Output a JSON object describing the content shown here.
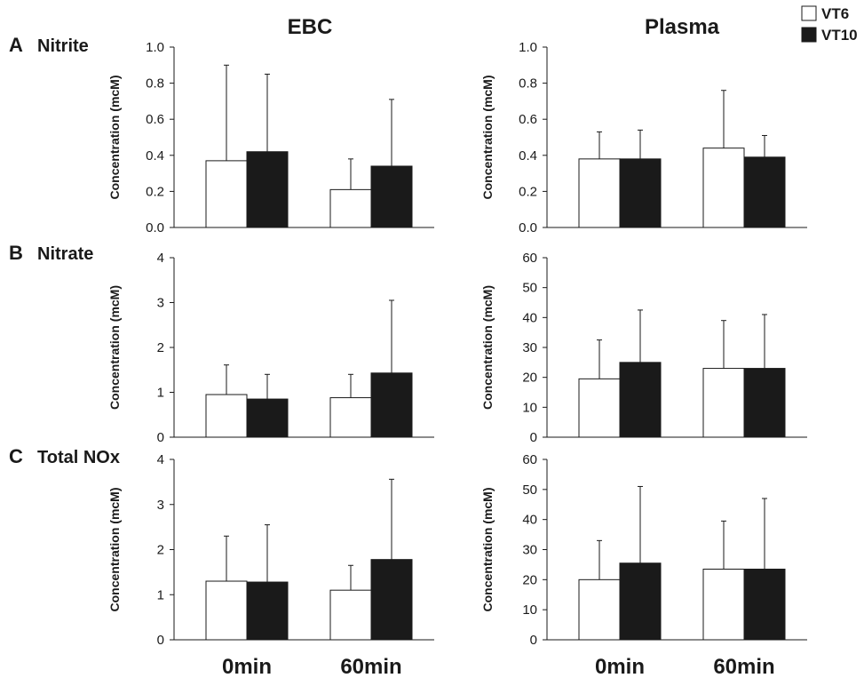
{
  "column_titles": [
    "EBC",
    "Plasma"
  ],
  "rows": [
    {
      "letter": "A",
      "title": "Nitrite"
    },
    {
      "letter": "B",
      "title": "Nitrate"
    },
    {
      "letter": "C",
      "title": "Total NOx"
    }
  ],
  "legend": [
    {
      "name": "VT6",
      "color": "#ffffff"
    },
    {
      "name": "VT10",
      "color": "#1a1a1a"
    }
  ],
  "categories": [
    "0min",
    "60min"
  ],
  "chart_data": [
    {
      "type": "bar",
      "panel": "A-EBC",
      "ylabel": "Concentration (mcM)",
      "ylim": [
        0,
        1.0
      ],
      "yticks": [
        "0.0",
        "0.2",
        "0.4",
        "0.6",
        "0.8",
        "1.0"
      ],
      "categories": [
        "0min",
        "60min"
      ],
      "series": [
        {
          "name": "VT6",
          "values": [
            0.37,
            0.21
          ],
          "error": [
            0.53,
            0.17
          ]
        },
        {
          "name": "VT10",
          "values": [
            0.42,
            0.34
          ],
          "error": [
            0.43,
            0.37
          ]
        }
      ]
    },
    {
      "type": "bar",
      "panel": "A-Plasma",
      "ylabel": "Concentration (mcM)",
      "ylim": [
        0,
        1.0
      ],
      "yticks": [
        "0.0",
        "0.2",
        "0.4",
        "0.6",
        "0.8",
        "1.0"
      ],
      "categories": [
        "0min",
        "60min"
      ],
      "series": [
        {
          "name": "VT6",
          "values": [
            0.38,
            0.44
          ],
          "error": [
            0.15,
            0.32
          ]
        },
        {
          "name": "VT10",
          "values": [
            0.38,
            0.39
          ],
          "error": [
            0.16,
            0.12
          ]
        }
      ]
    },
    {
      "type": "bar",
      "panel": "B-EBC",
      "ylabel": "Concentration (mcM)",
      "ylim": [
        0,
        4
      ],
      "yticks": [
        "0",
        "1",
        "2",
        "3",
        "4"
      ],
      "categories": [
        "0min",
        "60min"
      ],
      "series": [
        {
          "name": "VT6",
          "values": [
            0.95,
            0.88
          ],
          "error": [
            0.66,
            0.52
          ]
        },
        {
          "name": "VT10",
          "values": [
            0.85,
            1.43
          ],
          "error": [
            0.55,
            1.62
          ]
        }
      ]
    },
    {
      "type": "bar",
      "panel": "B-Plasma",
      "ylabel": "Concentration (mcM)",
      "ylim": [
        0,
        60
      ],
      "yticks": [
        "0",
        "10",
        "20",
        "30",
        "40",
        "50",
        "60"
      ],
      "categories": [
        "0min",
        "60min"
      ],
      "series": [
        {
          "name": "VT6",
          "values": [
            19.5,
            23
          ],
          "error": [
            13,
            16
          ]
        },
        {
          "name": "VT10",
          "values": [
            25,
            23
          ],
          "error": [
            17.5,
            18
          ]
        }
      ]
    },
    {
      "type": "bar",
      "panel": "C-EBC",
      "ylabel": "Concentration (mcM)",
      "ylim": [
        0,
        4
      ],
      "yticks": [
        "0",
        "1",
        "2",
        "3",
        "4"
      ],
      "categories": [
        "0min",
        "60min"
      ],
      "series": [
        {
          "name": "VT6",
          "values": [
            1.3,
            1.1
          ],
          "error": [
            1.0,
            0.55
          ]
        },
        {
          "name": "VT10",
          "values": [
            1.28,
            1.78
          ],
          "error": [
            1.27,
            1.78
          ]
        }
      ]
    },
    {
      "type": "bar",
      "panel": "C-Plasma",
      "ylabel": "Concentration (mcM)",
      "ylim": [
        0,
        60
      ],
      "yticks": [
        "0",
        "10",
        "20",
        "30",
        "40",
        "50",
        "60"
      ],
      "categories": [
        "0min",
        "60min"
      ],
      "series": [
        {
          "name": "VT6",
          "values": [
            20,
            23.5
          ],
          "error": [
            13,
            16
          ]
        },
        {
          "name": "VT10",
          "values": [
            25.5,
            23.5
          ],
          "error": [
            25.5,
            23.5
          ]
        }
      ]
    }
  ]
}
